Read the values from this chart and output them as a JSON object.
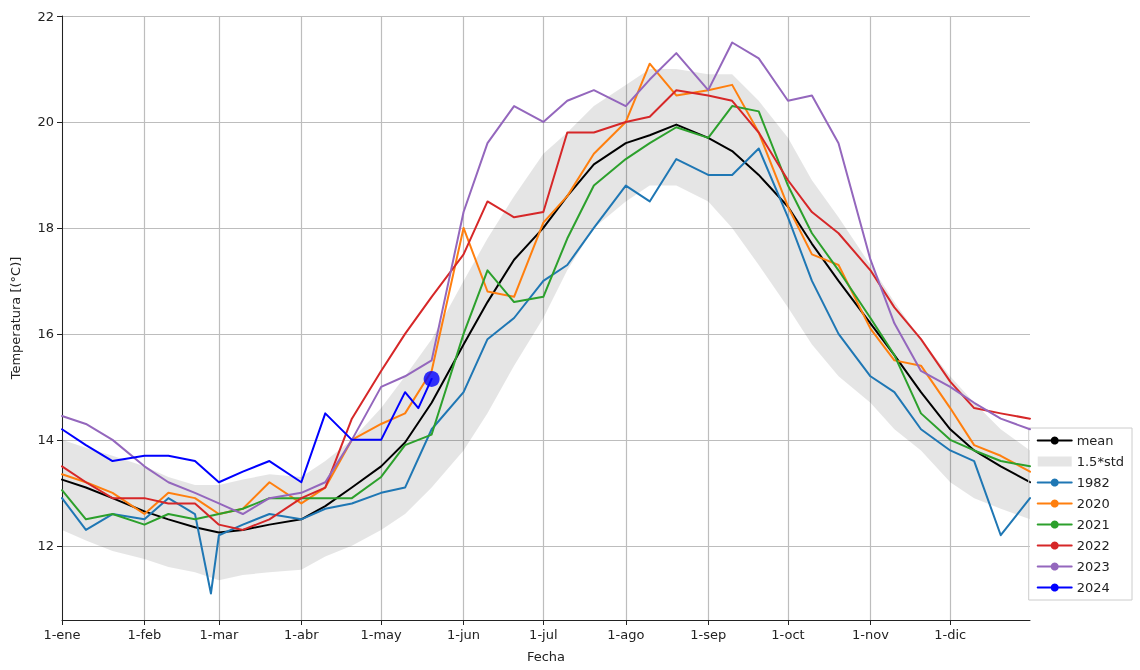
{
  "chart_data": {
    "type": "line",
    "xlabel": "Fecha",
    "ylabel": "Temperatura [(°C)]",
    "x": [
      "--01-01",
      "--01-10",
      "--01-20",
      "--02-01",
      "--02-10",
      "--02-20",
      "--03-01",
      "--03-10",
      "--03-20",
      "--04-01",
      "--04-10",
      "--04-20",
      "--05-01",
      "--05-10",
      "--05-20",
      "--06-01",
      "--06-10",
      "--06-20",
      "--07-01",
      "--07-10",
      "--07-20",
      "--08-01",
      "--08-10",
      "--08-20",
      "--09-01",
      "--09-10",
      "--09-20",
      "--10-01",
      "--10-10",
      "--10-20",
      "--11-01",
      "--11-10",
      "--11-20",
      "--12-01",
      "--12-10",
      "--12-20",
      "--12-31"
    ],
    "xlim": [
      "--01-01",
      "--12-31"
    ],
    "xticks": [
      {
        "value": "--01-01",
        "label": "1-ene"
      },
      {
        "value": "--02-01",
        "label": "1-feb"
      },
      {
        "value": "--03-01",
        "label": "1-mar"
      },
      {
        "value": "--04-01",
        "label": "1-abr"
      },
      {
        "value": "--05-01",
        "label": "1-may"
      },
      {
        "value": "--06-01",
        "label": "1-jun"
      },
      {
        "value": "--07-01",
        "label": "1-jul"
      },
      {
        "value": "--08-01",
        "label": "1-ago"
      },
      {
        "value": "--09-01",
        "label": "1-sep"
      },
      {
        "value": "--10-01",
        "label": "1-oct"
      },
      {
        "value": "--11-01",
        "label": "1-nov"
      },
      {
        "value": "--12-01",
        "label": "1-dic"
      }
    ],
    "ylim": [
      10.6,
      22
    ],
    "yticks": [
      12,
      14,
      16,
      18,
      20,
      22
    ],
    "annotations": [
      "1.5*std"
    ],
    "grid": true,
    "legend": "bottom right",
    "marker": "none",
    "line_style": "solid",
    "series": [
      {
        "name": "mean",
        "color": "#000000",
        "values": [
          13.25,
          13.1,
          12.9,
          12.65,
          12.5,
          12.35,
          12.25,
          12.3,
          12.4,
          12.5,
          12.75,
          13.1,
          13.5,
          13.95,
          14.7,
          15.8,
          16.6,
          17.4,
          18.0,
          18.6,
          19.2,
          19.6,
          19.75,
          19.95,
          19.7,
          19.45,
          19.0,
          18.4,
          17.7,
          17.0,
          16.2,
          15.6,
          14.9,
          14.2,
          13.8,
          13.5,
          13.2
        ],
        "lower": [
          12.3,
          12.1,
          11.9,
          11.75,
          11.6,
          11.5,
          11.35,
          11.45,
          11.5,
          11.55,
          11.8,
          12.0,
          12.3,
          12.6,
          13.1,
          13.8,
          14.5,
          15.4,
          16.3,
          17.2,
          18.0,
          18.5,
          18.8,
          18.8,
          18.5,
          18.0,
          17.3,
          16.5,
          15.8,
          15.2,
          14.7,
          14.2,
          13.8,
          13.2,
          12.9,
          12.7,
          12.5
        ],
        "upper": [
          14.0,
          13.85,
          13.7,
          13.5,
          13.3,
          13.15,
          13.15,
          13.25,
          13.35,
          13.3,
          13.6,
          14.0,
          14.6,
          15.2,
          15.9,
          17.0,
          17.8,
          18.6,
          19.4,
          19.8,
          20.3,
          20.7,
          21.0,
          21.0,
          20.9,
          20.9,
          20.4,
          19.7,
          18.9,
          18.2,
          17.3,
          16.6,
          15.9,
          15.2,
          14.7,
          14.2,
          13.8
        ]
      },
      {
        "name": "1982",
        "color": "#1f77b4",
        "x": [
          "--01-01",
          "--01-10",
          "--01-20",
          "--02-01",
          "--02-10",
          "--02-20",
          "--02-26",
          "--03-01",
          "--03-10",
          "--03-20",
          "--04-01",
          "--04-10",
          "--04-20",
          "--05-01",
          "--05-10",
          "--05-20",
          "--06-01",
          "--06-10",
          "--06-20",
          "--07-01",
          "--07-10",
          "--07-20",
          "--08-01",
          "--08-10",
          "--08-20",
          "--09-01",
          "--09-10",
          "--09-20",
          "--10-01",
          "--10-10",
          "--10-20",
          "--11-01",
          "--11-10",
          "--11-20",
          "--12-01",
          "--12-10",
          "--12-20",
          "--12-31"
        ],
        "values": [
          12.9,
          12.3,
          12.6,
          12.5,
          12.9,
          12.6,
          11.1,
          12.2,
          12.4,
          12.6,
          12.5,
          12.7,
          12.8,
          13.0,
          13.1,
          14.2,
          14.9,
          15.9,
          16.3,
          17.0,
          17.3,
          18.0,
          18.8,
          18.5,
          19.3,
          19.0,
          19.0,
          19.5,
          18.2,
          17.0,
          16.0,
          15.2,
          14.9,
          14.2,
          13.8,
          13.6,
          12.2,
          12.9
        ]
      },
      {
        "name": "2020",
        "color": "#ff7f0e",
        "values": [
          13.35,
          13.2,
          13.0,
          12.6,
          13.0,
          12.9,
          12.6,
          12.7,
          13.2,
          12.8,
          13.1,
          14.0,
          14.3,
          14.5,
          15.3,
          18.0,
          16.8,
          16.7,
          18.1,
          18.6,
          19.4,
          20.0,
          21.1,
          20.5,
          20.6,
          20.7,
          19.8,
          18.4,
          17.5,
          17.3,
          16.1,
          15.5,
          15.4,
          14.6,
          13.9,
          13.7,
          13.4
        ]
      },
      {
        "name": "2021",
        "color": "#2ca02c",
        "values": [
          13.05,
          12.5,
          12.6,
          12.4,
          12.6,
          12.5,
          12.6,
          12.7,
          12.9,
          12.9,
          12.9,
          12.9,
          13.3,
          13.9,
          14.1,
          16.0,
          17.2,
          16.6,
          16.7,
          17.8,
          18.8,
          19.3,
          19.6,
          19.9,
          19.7,
          20.3,
          20.2,
          18.8,
          17.9,
          17.2,
          16.3,
          15.6,
          14.5,
          14.0,
          13.8,
          13.6,
          13.5
        ]
      },
      {
        "name": "2022",
        "color": "#d62728",
        "values": [
          13.5,
          13.2,
          12.9,
          12.9,
          12.8,
          12.8,
          12.4,
          12.3,
          12.5,
          12.9,
          13.1,
          14.4,
          15.3,
          16.0,
          16.7,
          17.5,
          18.5,
          18.2,
          18.3,
          19.8,
          19.8,
          20.0,
          20.1,
          20.6,
          20.5,
          20.4,
          19.8,
          18.9,
          18.3,
          17.9,
          17.2,
          16.5,
          15.9,
          15.1,
          14.6,
          14.5,
          14.4
        ]
      },
      {
        "name": "2023",
        "color": "#9467bd",
        "values": [
          14.45,
          14.3,
          14.0,
          13.5,
          13.2,
          13.0,
          12.8,
          12.6,
          12.9,
          13.0,
          13.2,
          14.0,
          15.0,
          15.2,
          15.5,
          18.3,
          19.6,
          20.3,
          20.0,
          20.4,
          20.6,
          20.3,
          20.8,
          21.3,
          20.6,
          21.5,
          21.2,
          20.4,
          20.5,
          19.6,
          17.4,
          16.2,
          15.3,
          15.0,
          14.7,
          14.4,
          14.2
        ]
      },
      {
        "name": "2024",
        "color": "#0000ff",
        "x": [
          "--01-01",
          "--01-10",
          "--01-20",
          "--02-01",
          "--02-10",
          "--02-20",
          "--03-01",
          "--03-10",
          "--03-20",
          "--04-01",
          "--04-10",
          "--04-20",
          "--05-01",
          "--05-10",
          "--05-15",
          "--05-20"
        ],
        "values": [
          14.2,
          13.9,
          13.6,
          13.7,
          13.7,
          13.6,
          13.2,
          13.4,
          13.6,
          13.2,
          14.5,
          14.0,
          14.0,
          14.9,
          14.6,
          15.15
        ]
      },
      {
        "type": "scatter",
        "marker": "circle",
        "color": "#0000ff",
        "x": [
          "--05-20"
        ],
        "values": [
          15.15
        ]
      }
    ]
  }
}
